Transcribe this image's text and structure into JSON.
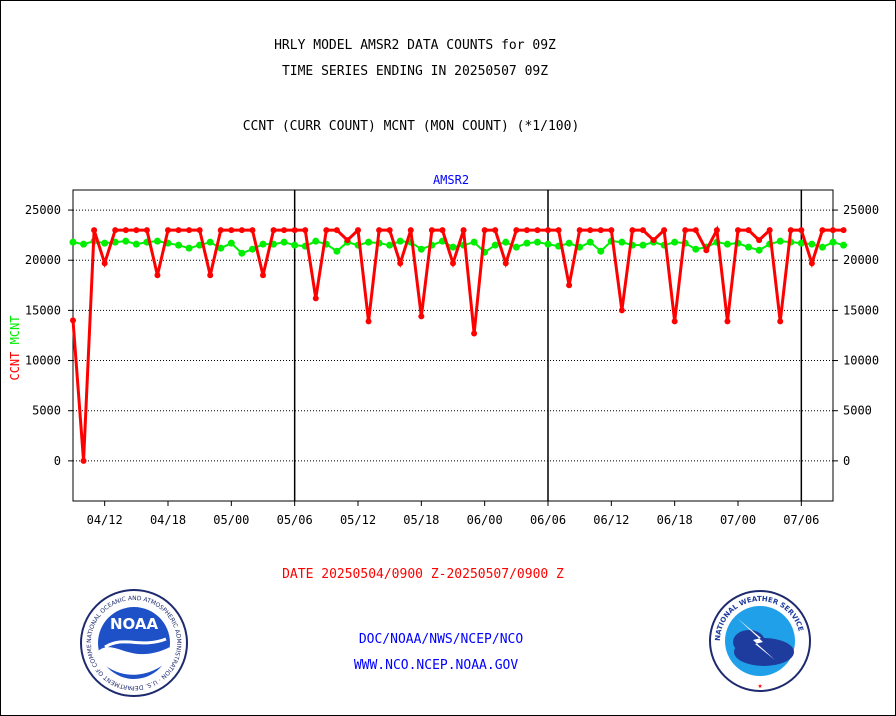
{
  "header": {
    "title_line1": "HRLY MODEL AMSR2 DATA COUNTS for 09Z",
    "title_line2": "TIME SERIES ENDING IN 20250507 09Z",
    "subtitle": "CCNT (CURR COUNT) MCNT (MON COUNT) (*1/100)"
  },
  "chart_data": {
    "type": "line",
    "title": "AMSR2",
    "ylabel_parts": [
      {
        "text": "CCNT",
        "color": "#ff0000"
      },
      {
        "text": "MCNT",
        "color": "#00ee00"
      }
    ],
    "xlabel": "DATE 20250504/0900 Z-20250507/0900 Z",
    "ylim": [
      -4000,
      27000
    ],
    "yticks": [
      0,
      5000,
      10000,
      15000,
      20000,
      25000
    ],
    "xlim": [
      0,
      72
    ],
    "x_tick_positions": [
      3,
      9,
      15,
      21,
      27,
      33,
      39,
      45,
      51,
      57,
      63,
      69
    ],
    "x_tick_labels": [
      "04/12",
      "04/18",
      "05/00",
      "05/06",
      "05/12",
      "05/18",
      "06/00",
      "06/06",
      "06/12",
      "06/18",
      "07/00",
      "07/06"
    ],
    "day_separators": [
      21,
      45,
      69
    ],
    "grid": "horizontal dotted",
    "series": [
      {
        "key": "CCNT",
        "color": "#ff0000",
        "values": [
          14000,
          0,
          23000,
          19700,
          23000,
          23000,
          23000,
          23000,
          18500,
          23000,
          23000,
          23000,
          23000,
          18500,
          23000,
          23000,
          23000,
          23000,
          18500,
          23000,
          23000,
          23000,
          23000,
          16200,
          23000,
          23000,
          22000,
          23000,
          13900,
          23000,
          23000,
          19700,
          23000,
          14400,
          23000,
          23000,
          19700,
          23000,
          12700,
          23000,
          23000,
          19700,
          23000,
          23000,
          23000,
          23000,
          23000,
          17500,
          23000,
          23000,
          23000,
          23000,
          15000,
          23000,
          23000,
          22000,
          23000,
          13900,
          23000,
          23000,
          21000,
          23000,
          13900,
          23000,
          23000,
          22000,
          23000,
          13900,
          23000,
          23000,
          19700,
          23000,
          23000,
          23000
        ]
      },
      {
        "key": "MCNT",
        "color": "#00ee00",
        "values": [
          21800,
          21600,
          21900,
          21700,
          21800,
          21900,
          21600,
          21800,
          21900,
          21700,
          21500,
          21200,
          21500,
          21800,
          21200,
          21700,
          20700,
          21100,
          21600,
          21600,
          21800,
          21500,
          21400,
          21900,
          21600,
          20900,
          21800,
          21500,
          21800,
          21700,
          21500,
          21900,
          21800,
          21100,
          21500,
          21900,
          21300,
          21500,
          21800,
          20800,
          21500,
          21800,
          21300,
          21700,
          21800,
          21600,
          21400,
          21700,
          21300,
          21800,
          20900,
          21900,
          21800,
          21500,
          21500,
          21800,
          21500,
          21800,
          21700,
          21100,
          21300,
          21800,
          21600,
          21700,
          21300,
          21000,
          21600,
          21900,
          21800,
          21700,
          21600,
          21300,
          21800,
          21500
        ]
      }
    ]
  },
  "footer": {
    "org_path": "DOC/NOAA/NWS/NCEP/NCO",
    "url": "WWW.NCO.NCEP.NOAA.GOV",
    "noaa_logo_text": "NOAA",
    "noaa_ring_text": "NATIONAL OCEANIC AND ATMOSPHERIC ADMINISTRATION · U.S. DEPARTMENT OF COMMERCE",
    "nws_ring_text": "NATIONAL WEATHER SERVICE"
  },
  "colors": {
    "ccnt": "#ff0000",
    "mcnt": "#00ee00",
    "axis_title": "#0000ff",
    "xlabel": "#ff0000",
    "footer_text": "#0000ff"
  }
}
